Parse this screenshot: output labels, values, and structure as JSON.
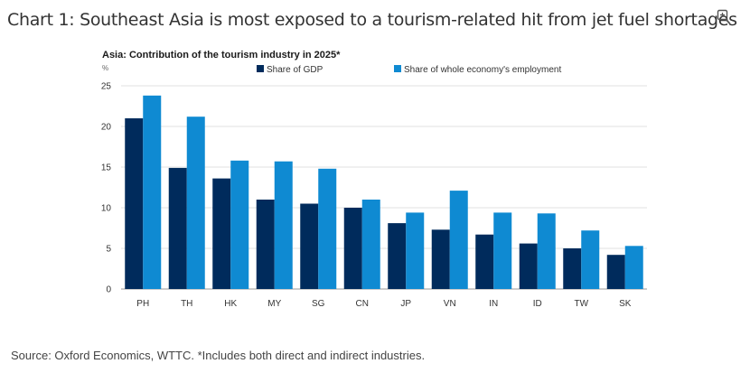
{
  "page": {
    "title": "Chart 1: Southeast Asia is most exposed to a tourism-related hit from jet fuel shortages",
    "source": "Source: Oxford Economics, WTTC. *Includes both direct and indirect industries.",
    "zoom_icon": "magnifier-plus-icon"
  },
  "chart_data": {
    "type": "bar",
    "title": "Asia: Contribution of the tourism industry in 2025*",
    "ylabel": "%",
    "xlabel": "",
    "ylim": [
      0,
      25
    ],
    "yticks": [
      0,
      5,
      10,
      15,
      20,
      25
    ],
    "grid": true,
    "legend_position": "top",
    "categories": [
      "PH",
      "TH",
      "HK",
      "MY",
      "SG",
      "CN",
      "JP",
      "VN",
      "IN",
      "ID",
      "TW",
      "SK"
    ],
    "series": [
      {
        "name": "Share of GDP",
        "color": "#002b5c",
        "values": [
          21.0,
          14.9,
          13.6,
          11.0,
          10.5,
          10.0,
          8.1,
          7.3,
          6.7,
          5.6,
          5.0,
          4.2
        ]
      },
      {
        "name": "Share of whole economy's employment",
        "color": "#0f8ad2",
        "values": [
          23.8,
          21.2,
          15.8,
          15.7,
          14.8,
          11.0,
          9.4,
          12.1,
          9.4,
          9.3,
          7.2,
          5.3
        ]
      }
    ]
  }
}
